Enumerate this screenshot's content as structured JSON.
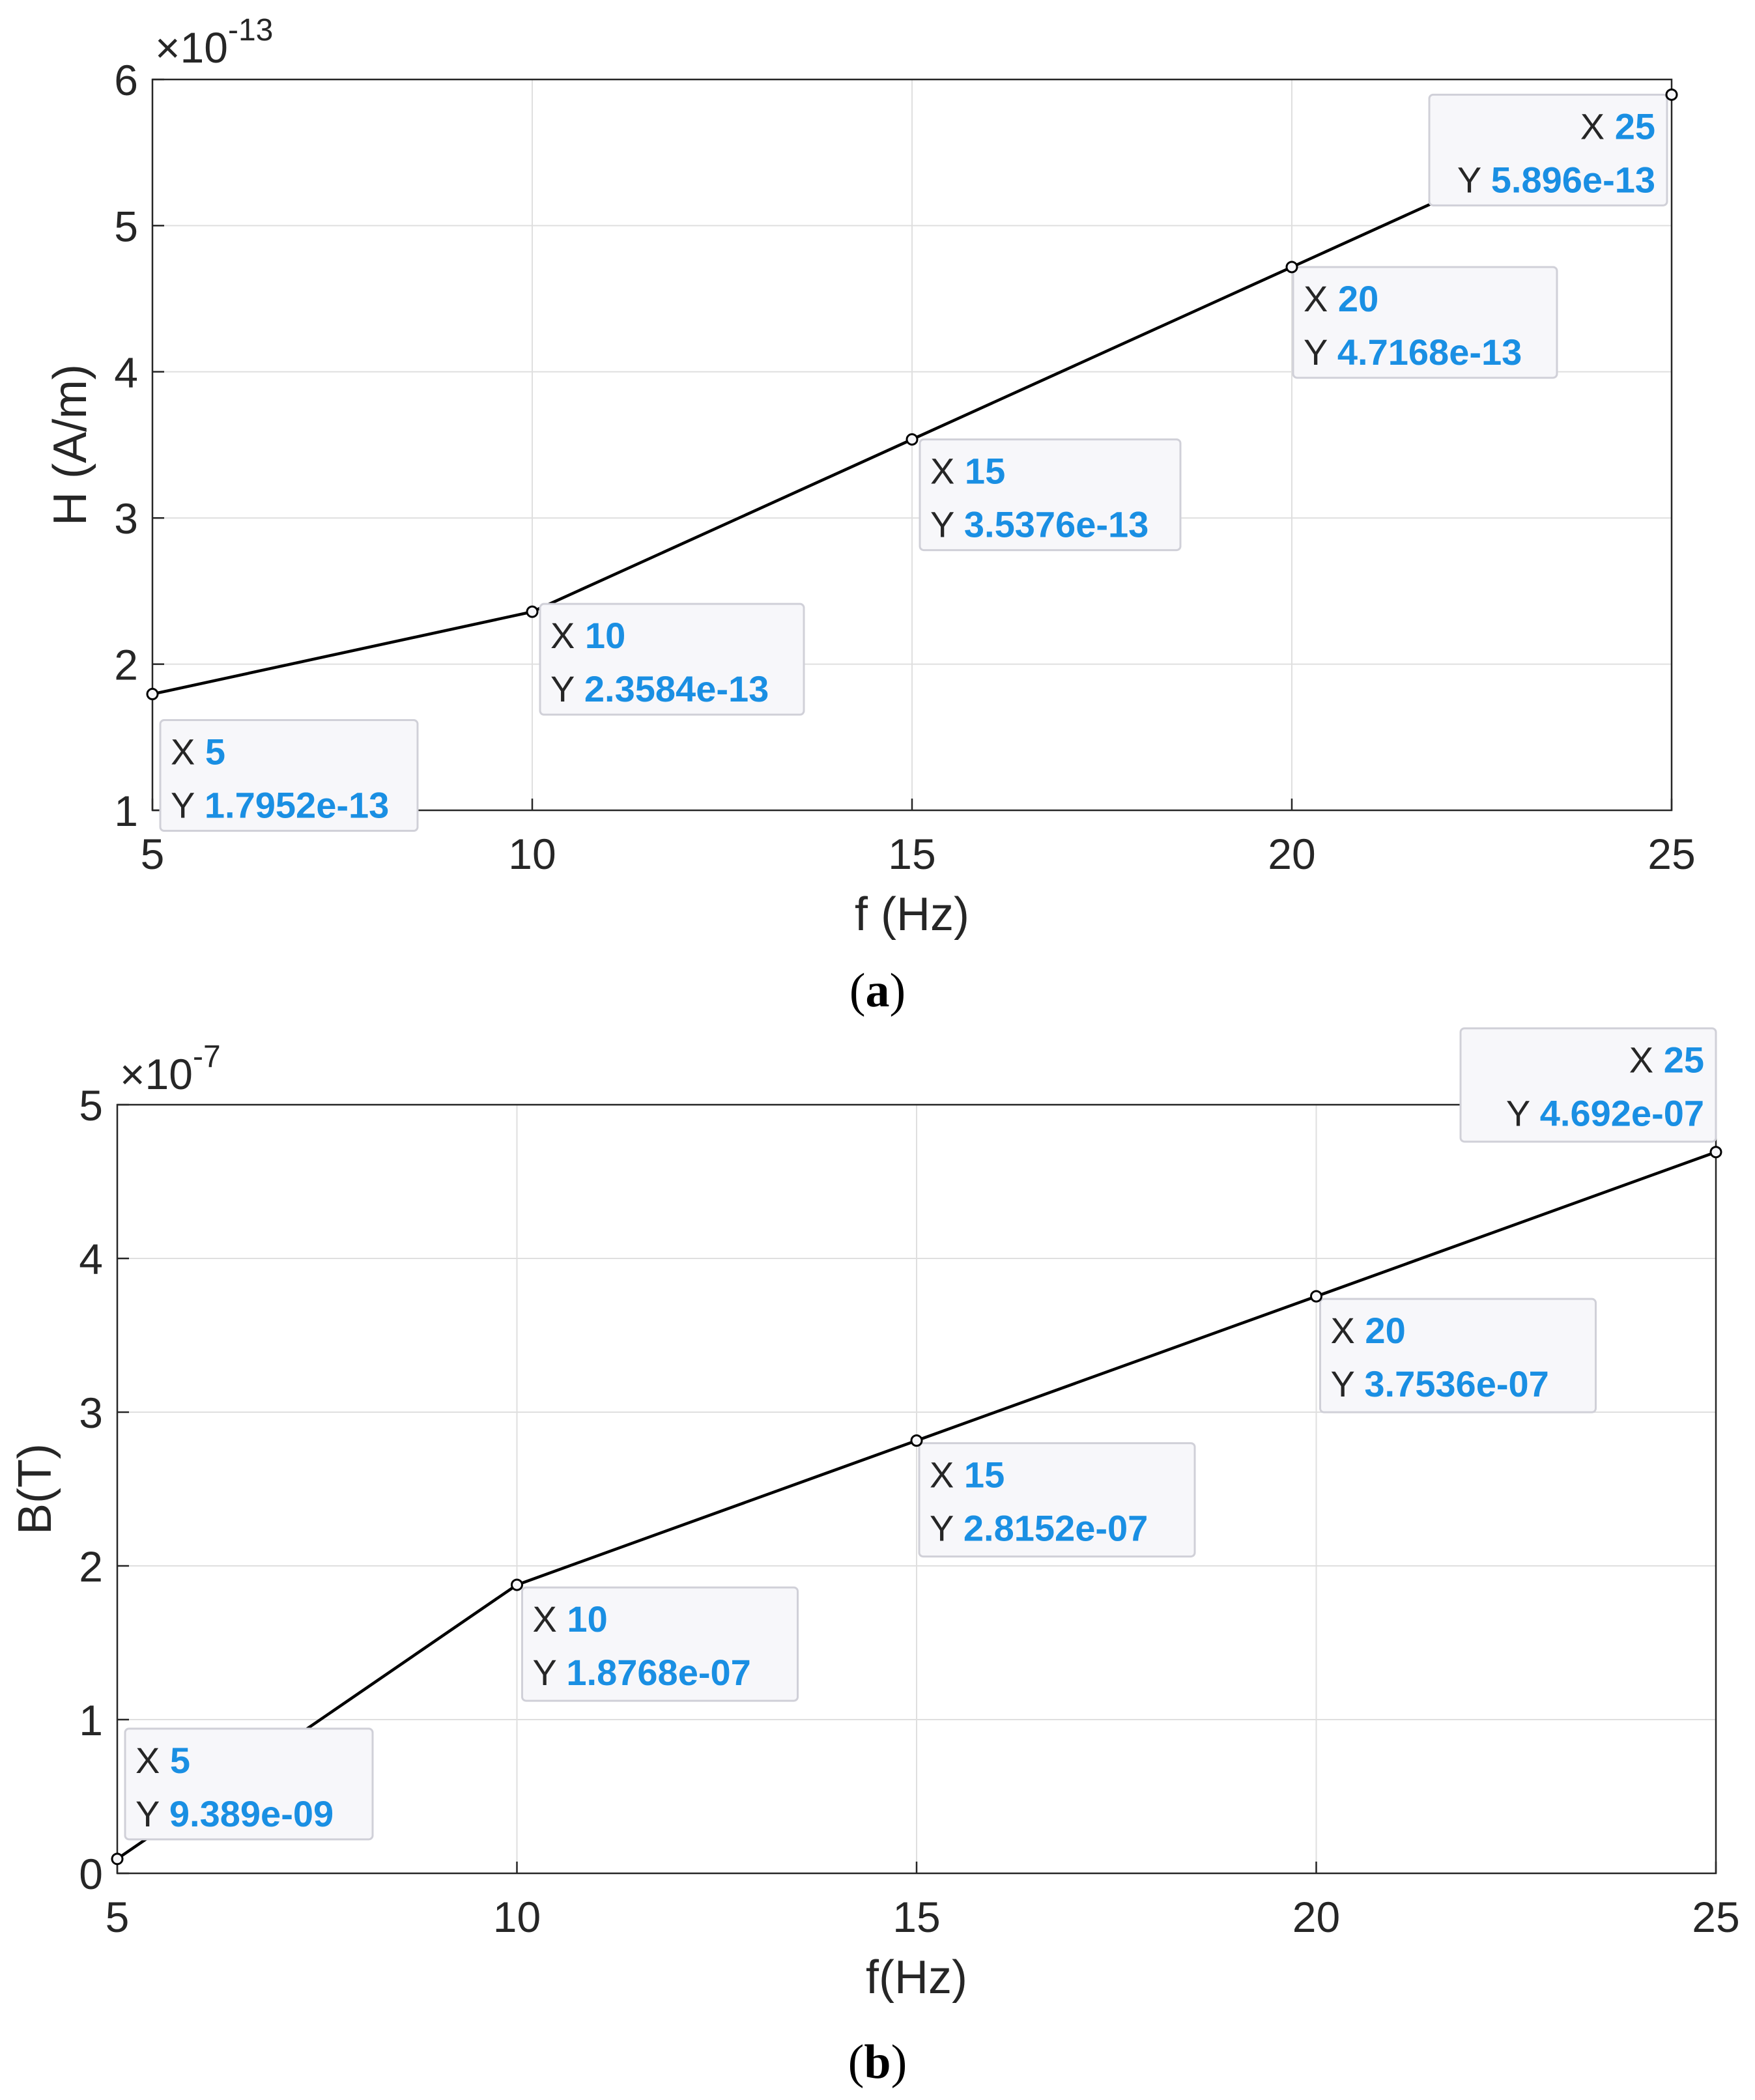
{
  "chart_data": [
    {
      "type": "line",
      "caption_bold": "a",
      "xlabel": "f (Hz)",
      "ylabel": "H (A/m)",
      "exponent_base": "×10",
      "exponent_power": "-13",
      "xlim": [
        5,
        25
      ],
      "ylim": [
        1,
        6
      ],
      "xticks": [
        "5",
        "10",
        "15",
        "20",
        "25"
      ],
      "yticks": [
        "1",
        "2",
        "3",
        "4",
        "5",
        "6"
      ],
      "grid": true,
      "x": [
        5,
        10,
        15,
        20,
        25
      ],
      "y": [
        1.7952,
        2.3584,
        3.5376,
        4.7168,
        5.896
      ],
      "datatips": [
        {
          "x_label": "X",
          "x_text": "5",
          "y_label": "Y",
          "y_text": "1.7952e-13"
        },
        {
          "x_label": "X",
          "x_text": "10",
          "y_label": "Y",
          "y_text": "2.3584e-13"
        },
        {
          "x_label": "X",
          "x_text": "15",
          "y_label": "Y",
          "y_text": "3.5376e-13"
        },
        {
          "x_label": "X",
          "x_text": "20",
          "y_label": "Y",
          "y_text": "4.7168e-13"
        },
        {
          "x_label": "X",
          "x_text": "25",
          "y_label": "Y",
          "y_text": "5.896e-13"
        }
      ]
    },
    {
      "type": "line",
      "caption_bold": "b",
      "xlabel": "f(Hz)",
      "ylabel": "B(T)",
      "exponent_base": "×10",
      "exponent_power": "-7",
      "xlim": [
        5,
        25
      ],
      "ylim": [
        0,
        5
      ],
      "xticks": [
        "5",
        "10",
        "15",
        "20",
        "25"
      ],
      "yticks": [
        "0",
        "1",
        "2",
        "3",
        "4",
        "5"
      ],
      "grid": true,
      "x": [
        5,
        10,
        15,
        20,
        25
      ],
      "y": [
        0.09389,
        1.8768,
        2.8152,
        3.7536,
        4.692
      ],
      "datatips": [
        {
          "x_label": "X",
          "x_text": "5",
          "y_label": "Y",
          "y_text": "9.389e-09"
        },
        {
          "x_label": "X",
          "x_text": "10",
          "y_label": "Y",
          "y_text": "1.8768e-07"
        },
        {
          "x_label": "X",
          "x_text": "15",
          "y_label": "Y",
          "y_text": "2.8152e-07"
        },
        {
          "x_label": "X",
          "x_text": "20",
          "y_label": "Y",
          "y_text": "3.7536e-07"
        },
        {
          "x_label": "X",
          "x_text": "25",
          "y_label": "Y",
          "y_text": "4.692e-07"
        }
      ]
    }
  ],
  "colors": {
    "line": "#000000",
    "tip_value": "#1a8fe3",
    "axis": "#262626",
    "grid": "#dfdfdf"
  }
}
